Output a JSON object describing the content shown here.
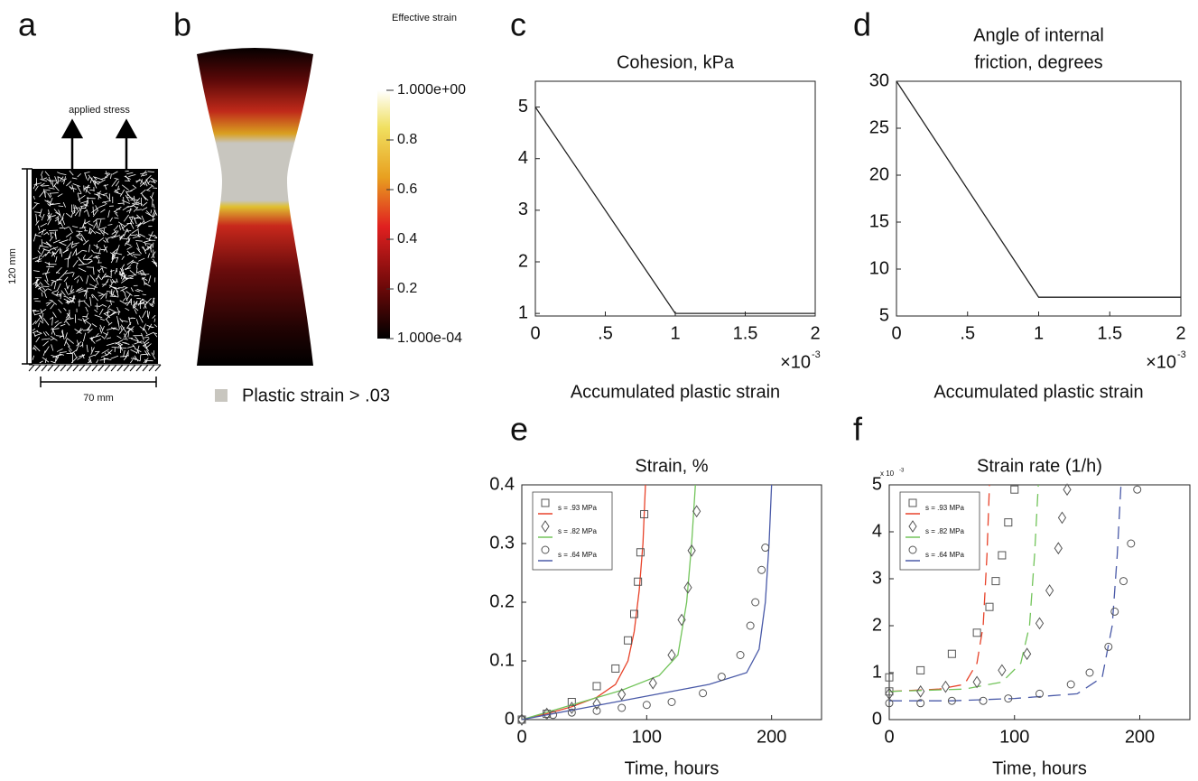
{
  "panels": {
    "a": {
      "label": "a",
      "arrow_label": "applied stress",
      "height_label": "120 mm",
      "width_label": "70 mm"
    },
    "b": {
      "label": "b",
      "legend_label": "Plastic strain > .03",
      "legend_color": "#c8c6bf",
      "colorbar": {
        "title": "Effective strain",
        "lim": [
          0.0001,
          1
        ],
        "ticks": [
          {
            "value": 1,
            "label": "1.000e+00"
          },
          0.8,
          0.6,
          0.4,
          0.2,
          {
            "value": 0.0001,
            "label": "1.000e-04"
          }
        ]
      }
    }
  },
  "chart_data": [
    {
      "type": "line",
      "label": "c",
      "title": "Cohesion, kPa",
      "xlabel": "Accumulated plastic strain",
      "x_multiplier": {
        "base": "×10",
        "exponent": "-3"
      },
      "xlim": [
        0,
        2
      ],
      "ylim": [
        0.95,
        5.5
      ],
      "xticks": [
        0,
        {
          "value": 0.5,
          "label": ".5"
        },
        1,
        1.5,
        2
      ],
      "yticks": [
        1,
        2,
        3,
        4,
        5
      ],
      "series": [
        {
          "color": "#222222",
          "x": [
            0,
            1,
            2
          ],
          "values": [
            5,
            1,
            1
          ]
        }
      ]
    },
    {
      "type": "line",
      "label": "d",
      "title": [
        "Angle of internal",
        "friction, degrees"
      ],
      "xlabel": "Accumulated plastic strain",
      "x_multiplier": {
        "base": "×10",
        "exponent": "-3"
      },
      "xlim": [
        0,
        2
      ],
      "ylim": [
        5,
        30
      ],
      "xticks": [
        0,
        {
          "value": 0.5,
          "label": ".5"
        },
        1,
        1.5,
        2
      ],
      "yticks": [
        5,
        10,
        15,
        20,
        25,
        30
      ],
      "series": [
        {
          "color": "#222222",
          "x": [
            0,
            1,
            2
          ],
          "values": [
            30,
            7,
            7
          ]
        }
      ]
    },
    {
      "type": "scatter",
      "label": "e",
      "title": "Strain, %",
      "xlabel": "Time, hours",
      "xlim": [
        0,
        240
      ],
      "ylim": [
        0,
        0.4
      ],
      "xticks": [
        0,
        100,
        200
      ],
      "yticks": [
        0,
        0.1,
        0.2,
        0.3,
        0.4
      ],
      "legend": "upper left",
      "fit_style": "solid",
      "series": [
        {
          "name": "s = .93 MPa",
          "color": "#e8432a",
          "marker": "square",
          "x": [
            0,
            20,
            40,
            60,
            75,
            85,
            90,
            93,
            95,
            98
          ],
          "values": [
            0,
            0.01,
            0.03,
            0.057,
            0.087,
            0.135,
            0.18,
            0.235,
            0.285,
            0.35
          ],
          "fit_x": [
            0,
            20,
            40,
            60,
            75,
            85,
            90,
            94,
            97,
            99
          ],
          "fit_values": [
            0,
            0.01,
            0.022,
            0.038,
            0.06,
            0.1,
            0.15,
            0.22,
            0.3,
            0.4
          ]
        },
        {
          "name": "s = .82 MPa",
          "color": "#72c45a",
          "marker": "diamond",
          "x": [
            0,
            20,
            40,
            60,
            80,
            105,
            120,
            128,
            133,
            136,
            140
          ],
          "values": [
            0,
            0.01,
            0.02,
            0.027,
            0.043,
            0.062,
            0.11,
            0.17,
            0.225,
            0.288,
            0.355
          ],
          "fit_x": [
            0,
            40,
            80,
            110,
            125,
            132,
            136,
            139
          ],
          "fit_values": [
            0,
            0.025,
            0.05,
            0.075,
            0.11,
            0.2,
            0.3,
            0.4
          ]
        },
        {
          "name": "s = .64 MPa",
          "color": "#4a5aa8",
          "marker": "circle",
          "x": [
            0,
            25,
            40,
            60,
            80,
            100,
            120,
            145,
            160,
            175,
            183,
            187,
            192,
            195
          ],
          "values": [
            0,
            0.008,
            0.012,
            0.015,
            0.02,
            0.025,
            0.03,
            0.045,
            0.073,
            0.11,
            0.16,
            0.2,
            0.255,
            0.293
          ],
          "fit_x": [
            0,
            50,
            100,
            150,
            180,
            190,
            195,
            198,
            200
          ],
          "fit_values": [
            0,
            0.02,
            0.04,
            0.06,
            0.08,
            0.12,
            0.2,
            0.3,
            0.4
          ]
        }
      ]
    },
    {
      "type": "scatter",
      "label": "f",
      "title": "Strain rate (1/h)",
      "xlabel": "Time, hours",
      "y_multiplier": {
        "base": "x 10",
        "exponent": "-3"
      },
      "xlim": [
        0,
        240
      ],
      "ylim": [
        0,
        5
      ],
      "xticks": [
        0,
        100,
        200
      ],
      "yticks": [
        0,
        1,
        2,
        3,
        4,
        5
      ],
      "legend": "upper left",
      "fit_style": "dashed",
      "series": [
        {
          "name": "s = .93 MPa",
          "color": "#e8432a",
          "marker": "square",
          "x": [
            0,
            0,
            25,
            50,
            70,
            80,
            85,
            90,
            95,
            100
          ],
          "values": [
            0.6,
            0.9,
            1.05,
            1.4,
            1.85,
            2.4,
            2.95,
            3.5,
            4.2,
            4.9
          ],
          "fit_x": [
            0,
            40,
            60,
            70,
            75,
            78,
            80
          ],
          "fit_values": [
            0.6,
            0.65,
            0.75,
            1.2,
            2,
            3.5,
            5
          ]
        },
        {
          "name": "s = .82 MPa",
          "color": "#72c45a",
          "marker": "diamond",
          "x": [
            0,
            25,
            45,
            70,
            90,
            110,
            120,
            128,
            135,
            138,
            142
          ],
          "values": [
            0.55,
            0.6,
            0.7,
            0.8,
            1.05,
            1.4,
            2.05,
            2.75,
            3.65,
            4.3,
            4.9
          ],
          "fit_x": [
            0,
            60,
            90,
            105,
            112,
            116,
            119
          ],
          "fit_values": [
            0.6,
            0.65,
            0.8,
            1.2,
            2,
            3.5,
            5
          ]
        },
        {
          "name": "s = .64 MPa",
          "color": "#4a5aa8",
          "marker": "circle",
          "x": [
            0,
            25,
            50,
            75,
            95,
            120,
            145,
            160,
            175,
            180,
            187,
            193,
            198
          ],
          "values": [
            0.35,
            0.35,
            0.4,
            0.4,
            0.45,
            0.55,
            0.75,
            1,
            1.55,
            2.3,
            2.95,
            3.75,
            4.9
          ],
          "fit_x": [
            0,
            50,
            100,
            150,
            170,
            178,
            182,
            185
          ],
          "fit_values": [
            0.4,
            0.4,
            0.45,
            0.55,
            0.9,
            2,
            3.5,
            5
          ]
        }
      ]
    }
  ]
}
